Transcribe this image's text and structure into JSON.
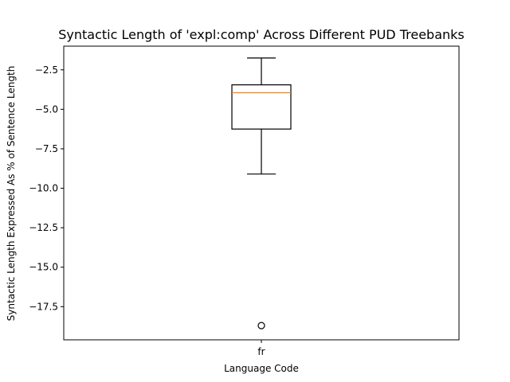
{
  "chart_data": {
    "type": "box",
    "title": "Syntactic Length of 'expl:comp' Across Different PUD Treebanks",
    "xlabel": "Language Code",
    "ylabel": "Syntactic Length Expressed As % of Sentence Length",
    "categories": [
      "fr"
    ],
    "ylim": [
      -19.6,
      -1.0
    ],
    "yticks": [
      -2.5,
      -5.0,
      -7.5,
      -10.0,
      -12.5,
      -15.0,
      -17.5
    ],
    "ytick_labels": [
      "−2.5",
      "−5.0",
      "−7.5",
      "−10.0",
      "−12.5",
      "−15.0",
      "−17.5"
    ],
    "grid": false,
    "boxes": [
      {
        "category": "fr",
        "whisker_high": -1.75,
        "q3": -3.45,
        "median": -3.95,
        "q1": -6.25,
        "whisker_low": -9.1,
        "outliers": [
          -18.7
        ]
      }
    ],
    "colors": {
      "box": "#000000",
      "median": "#ff7f0e",
      "outlier": "#000000"
    }
  }
}
